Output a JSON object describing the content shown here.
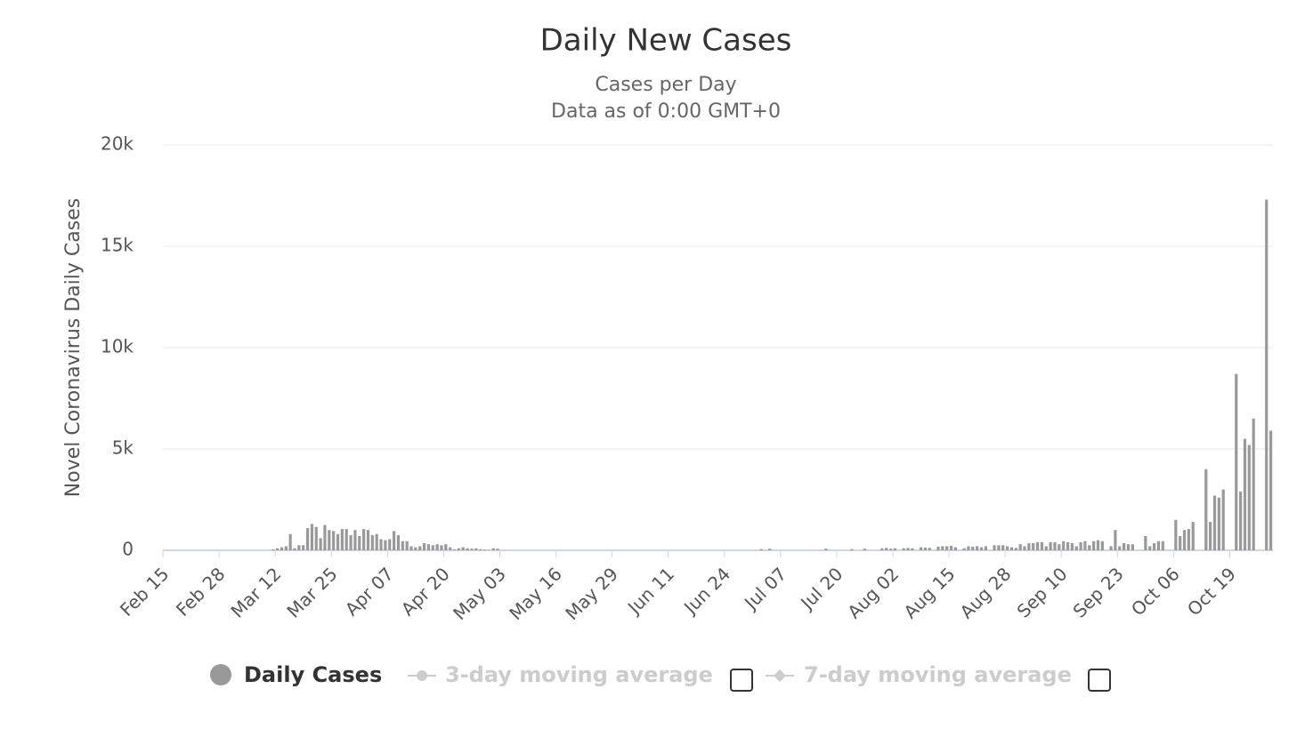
{
  "chart_data": {
    "type": "bar",
    "title": "Daily New Cases",
    "subtitle": [
      "Cases per Day",
      "Data as of 0:00 GMT+0"
    ],
    "y_label": "Novel Coronavirus Daily Cases",
    "categories": [
      "Feb 15",
      null,
      null,
      null,
      null,
      null,
      null,
      null,
      null,
      null,
      null,
      null,
      null,
      "Feb 28",
      null,
      null,
      null,
      null,
      null,
      null,
      null,
      null,
      null,
      null,
      null,
      null,
      "Mar 12",
      null,
      null,
      null,
      null,
      null,
      null,
      null,
      null,
      null,
      null,
      null,
      null,
      "Mar 25",
      null,
      null,
      null,
      null,
      null,
      null,
      null,
      null,
      null,
      null,
      null,
      null,
      "Apr 07",
      null,
      null,
      null,
      null,
      null,
      null,
      null,
      null,
      null,
      null,
      null,
      null,
      "Apr 20",
      null,
      null,
      null,
      null,
      null,
      null,
      null,
      null,
      null,
      null,
      null,
      null,
      "May 03",
      null,
      null,
      null,
      null,
      null,
      null,
      null,
      null,
      null,
      null,
      null,
      null,
      "May 16",
      null,
      null,
      null,
      null,
      null,
      null,
      null,
      null,
      null,
      null,
      null,
      null,
      "May 29",
      null,
      null,
      null,
      null,
      null,
      null,
      null,
      null,
      null,
      null,
      null,
      null,
      "Jun 11",
      null,
      null,
      null,
      null,
      null,
      null,
      null,
      null,
      null,
      null,
      null,
      null,
      "Jun 24",
      null,
      null,
      null,
      null,
      null,
      null,
      null,
      null,
      null,
      null,
      null,
      null,
      "Jul 07",
      null,
      null,
      null,
      null,
      null,
      null,
      null,
      null,
      null,
      null,
      null,
      null,
      "Jul 20",
      null,
      null,
      null,
      null,
      null,
      null,
      null,
      null,
      null,
      null,
      null,
      null,
      "Aug 02",
      null,
      null,
      null,
      null,
      null,
      null,
      null,
      null,
      null,
      null,
      null,
      null,
      "Aug 15",
      null,
      null,
      null,
      null,
      null,
      null,
      null,
      null,
      null,
      null,
      null,
      null,
      "Aug 28",
      null,
      null,
      null,
      null,
      null,
      null,
      null,
      null,
      null,
      null,
      null,
      null,
      "Sep 10",
      null,
      null,
      null,
      null,
      null,
      null,
      null,
      null,
      null,
      null,
      null,
      null,
      "Sep 23",
      null,
      null,
      null,
      null,
      null,
      null,
      null,
      null,
      null,
      null,
      null,
      null,
      "Oct 06",
      null,
      null,
      null,
      null,
      null,
      null,
      null,
      null,
      null,
      null,
      null,
      null,
      "Oct 19",
      null,
      null,
      null,
      null,
      null,
      null,
      null,
      null,
      null
    ],
    "series": [
      {
        "name": "Daily Cases",
        "color": "#999999",
        "values": [
          0,
          0,
          0,
          0,
          0,
          0,
          0,
          0,
          0,
          0,
          0,
          0,
          0,
          0,
          0,
          0,
          0,
          0,
          0,
          0,
          0,
          0,
          0,
          0,
          0,
          50,
          100,
          150,
          200,
          800,
          100,
          250,
          250,
          1100,
          1300,
          1150,
          600,
          1250,
          1000,
          950,
          800,
          1050,
          1050,
          750,
          1000,
          700,
          1050,
          1000,
          750,
          800,
          550,
          500,
          550,
          950,
          750,
          450,
          450,
          200,
          150,
          200,
          350,
          300,
          250,
          300,
          250,
          300,
          150,
          50,
          100,
          150,
          100,
          80,
          100,
          50,
          30,
          20,
          100,
          80,
          0,
          0,
          0,
          0,
          0,
          0,
          0,
          0,
          0,
          0,
          0,
          0,
          0,
          0,
          0,
          0,
          0,
          0,
          0,
          0,
          0,
          0,
          0,
          0,
          0,
          0,
          0,
          0,
          0,
          0,
          0,
          0,
          0,
          0,
          0,
          0,
          0,
          0,
          0,
          0,
          0,
          0,
          0,
          0,
          0,
          0,
          0,
          0,
          0,
          0,
          0,
          0,
          0,
          0,
          0,
          0,
          0,
          0,
          0,
          0,
          60,
          0,
          80,
          0,
          0,
          0,
          0,
          0,
          0,
          0,
          0,
          0,
          0,
          0,
          0,
          80,
          0,
          0,
          0,
          0,
          0,
          60,
          0,
          0,
          80,
          0,
          0,
          0,
          100,
          120,
          80,
          100,
          0,
          100,
          120,
          100,
          0,
          150,
          130,
          120,
          0,
          180,
          200,
          200,
          220,
          150,
          0,
          100,
          200,
          180,
          200,
          150,
          200,
          0,
          250,
          250,
          250,
          200,
          150,
          120,
          300,
          200,
          350,
          350,
          400,
          400,
          200,
          400,
          400,
          300,
          450,
          400,
          350,
          200,
          400,
          450,
          250,
          450,
          500,
          450,
          0,
          200,
          1000,
          200,
          350,
          300,
          300,
          0,
          0,
          700,
          200,
          350,
          450,
          450,
          0,
          0,
          1500,
          700,
          1000,
          1050,
          1400,
          0,
          0,
          4000,
          1400,
          2700,
          2600,
          3000,
          0,
          0,
          8700,
          2900,
          5500,
          5200,
          6500,
          0,
          0,
          17300,
          5900
        ]
      }
    ],
    "hidden_series": [
      {
        "name": "3-day moving average"
      },
      {
        "name": "7-day moving average"
      }
    ],
    "ylim": [
      0,
      20000
    ],
    "yticks": [
      0,
      {
        "value": 5000,
        "label": "5k"
      },
      {
        "value": 10000,
        "label": "10k"
      },
      {
        "value": 15000,
        "label": "15k"
      },
      {
        "value": 20000,
        "label": "20k"
      }
    ],
    "grid": true
  }
}
